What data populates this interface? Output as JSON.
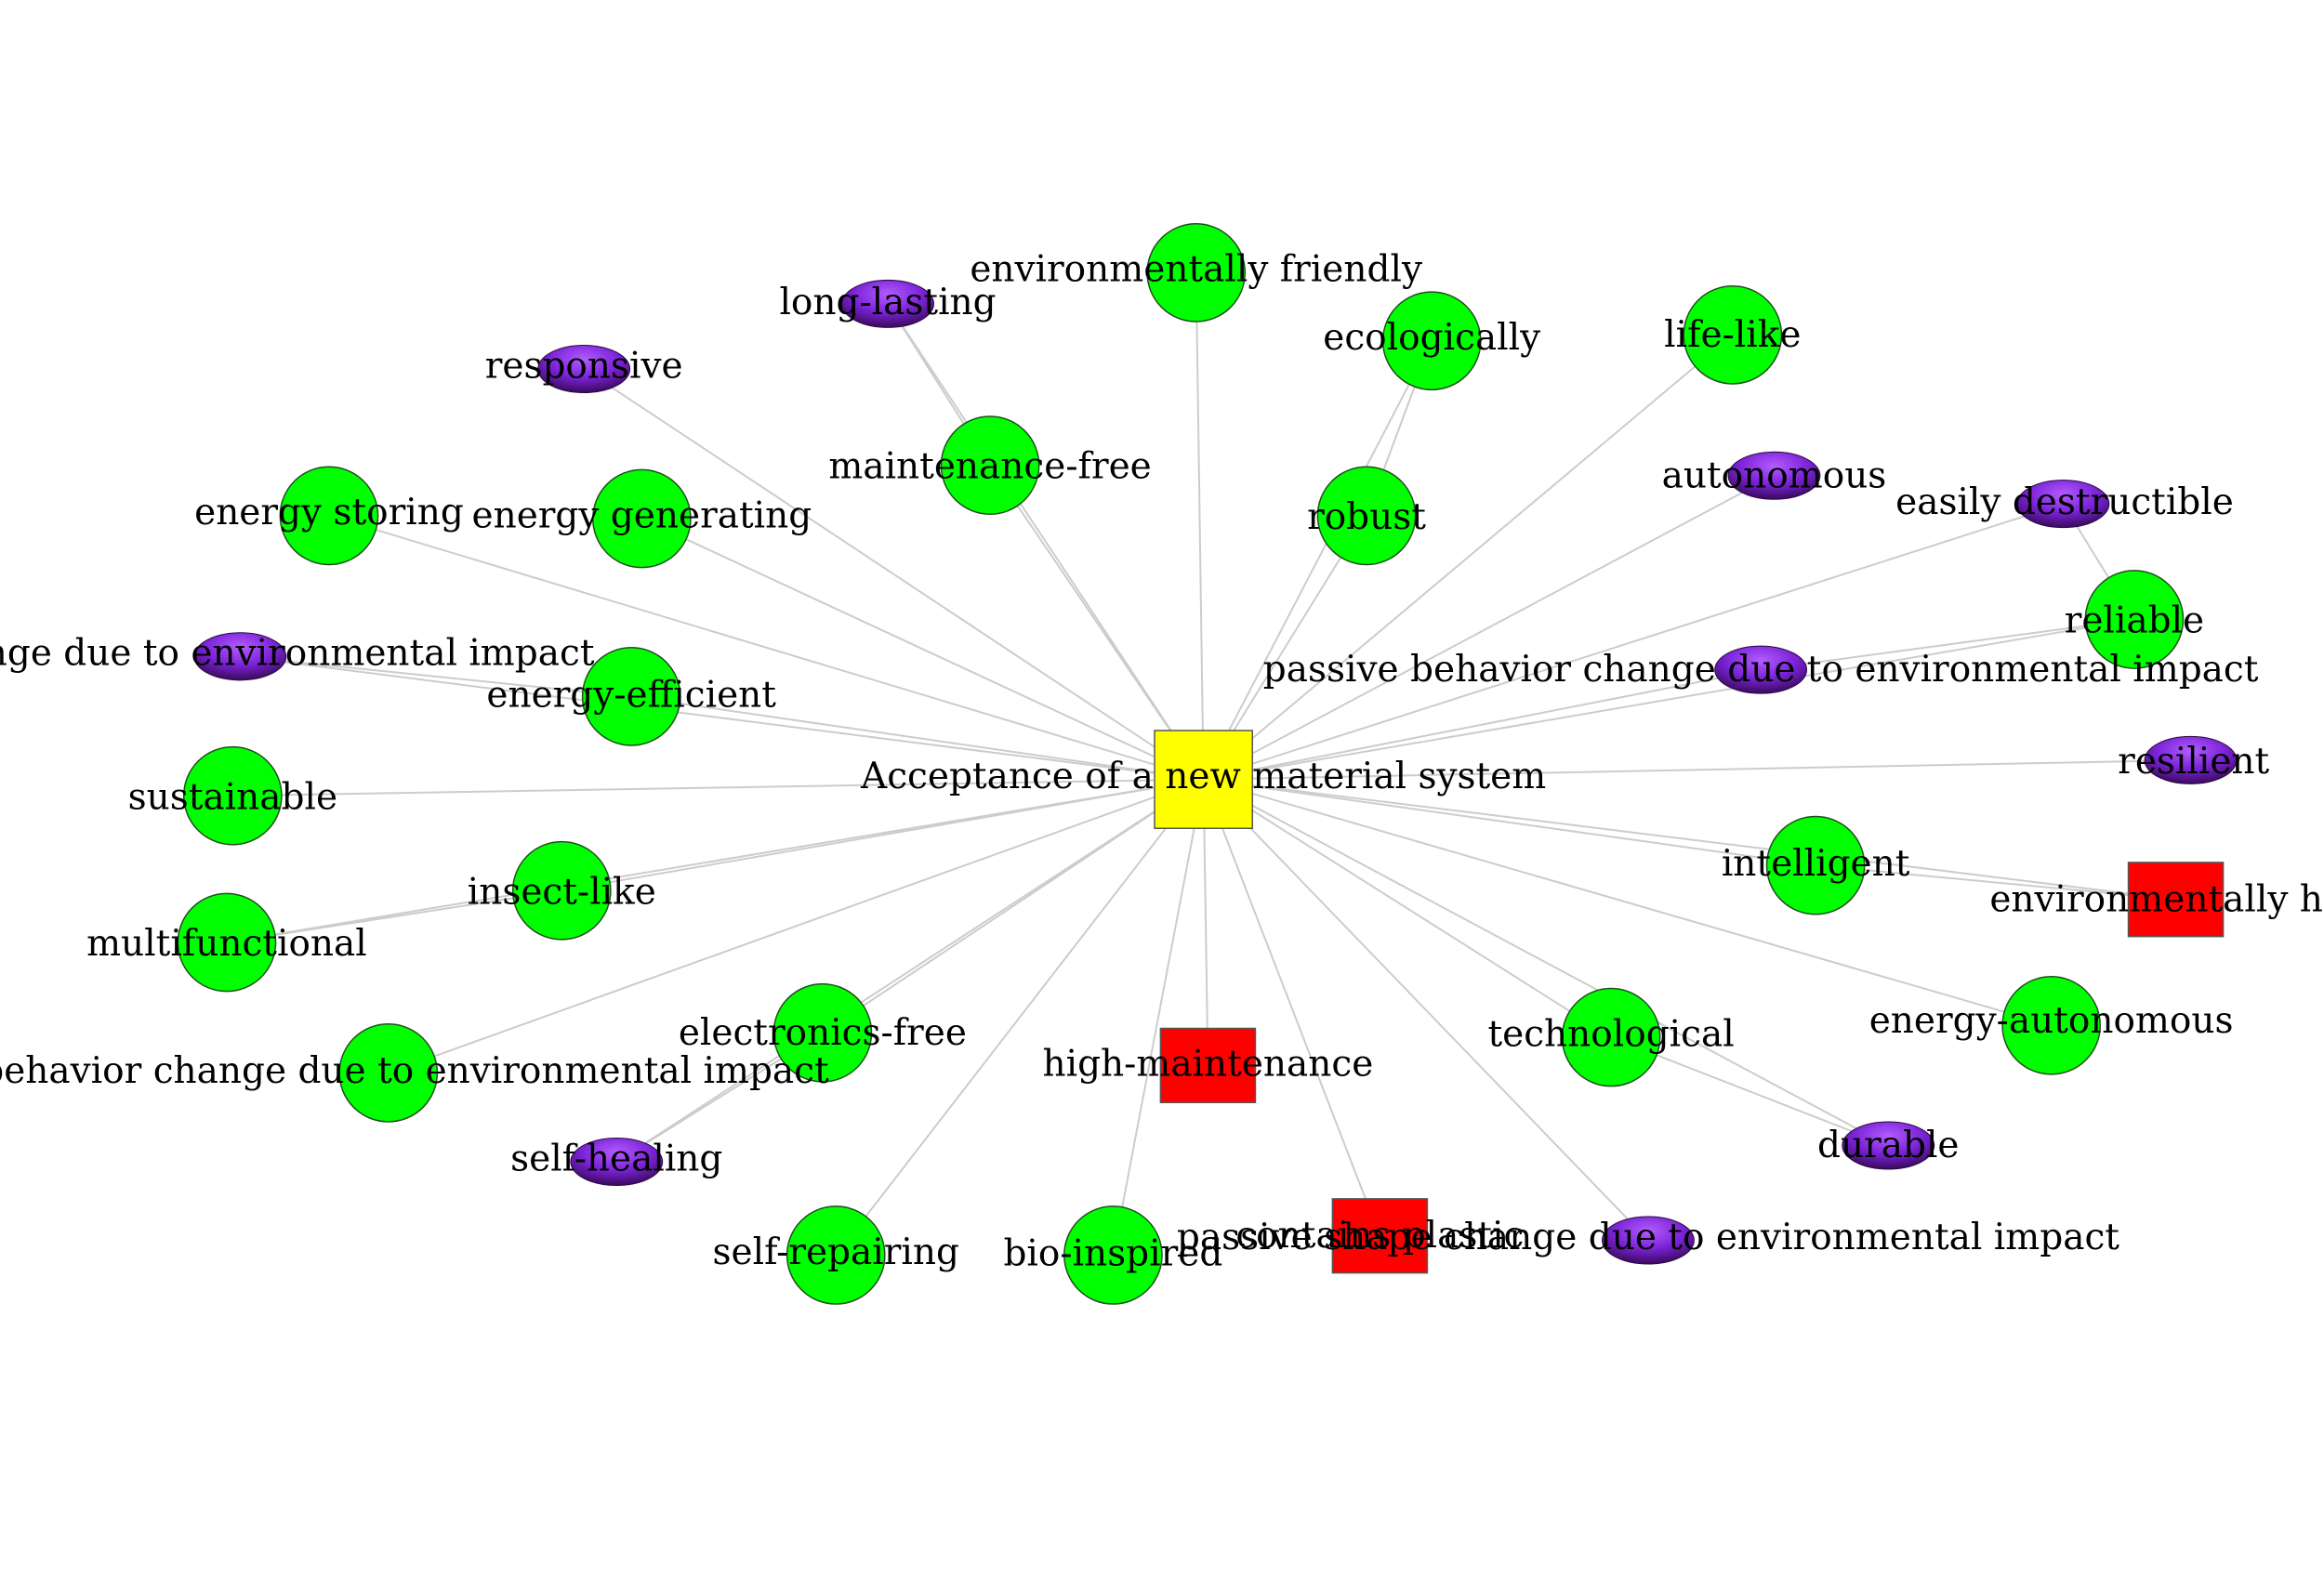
{
  "colors": {
    "center": "#ffff00",
    "positive": "#00ff00",
    "negative": "#ff0000",
    "neutral_light": "#9b30ff",
    "neutral_dark": "#3a0a5c",
    "edge": "#cccccc"
  },
  "center": {
    "label": "Acceptance of a new material system",
    "shape": "square",
    "color": "yellow"
  },
  "nodes": [
    {
      "id": "environmentally-friendly",
      "label": "environmentally friendly",
      "shape": "circle"
    },
    {
      "id": "long-lasting",
      "label": "long-lasting",
      "shape": "ellipse"
    },
    {
      "id": "responsive",
      "label": "responsive",
      "shape": "ellipse"
    },
    {
      "id": "ecologically",
      "label": "ecologically",
      "shape": "circle"
    },
    {
      "id": "life-like",
      "label": "life-like",
      "shape": "circle"
    },
    {
      "id": "maintenance-free",
      "label": "maintenance-free",
      "shape": "circle"
    },
    {
      "id": "robust",
      "label": "robust",
      "shape": "circle"
    },
    {
      "id": "autonomous",
      "label": "autonomous",
      "shape": "ellipse"
    },
    {
      "id": "easily-destructible",
      "label": "easily destructible",
      "shape": "ellipse"
    },
    {
      "id": "energy-storing",
      "label": "energy storing",
      "shape": "circle"
    },
    {
      "id": "energy-generating",
      "label": "energy generating",
      "shape": "circle"
    },
    {
      "id": "reliable",
      "label": "reliable",
      "shape": "circle"
    },
    {
      "id": "passive-behavior-change-right",
      "label": "passive behavior change due to environmental impact",
      "shape": "ellipse"
    },
    {
      "id": "change-due-left",
      "label": "e change due to environmental impact",
      "shape": "ellipse"
    },
    {
      "id": "energy-efficient",
      "label": "energy-efficient",
      "shape": "circle"
    },
    {
      "id": "sustainable",
      "label": "sustainable",
      "shape": "circle"
    },
    {
      "id": "resilient",
      "label": "resilient",
      "shape": "ellipse"
    },
    {
      "id": "intelligent",
      "label": "intelligent",
      "shape": "circle"
    },
    {
      "id": "insect-like",
      "label": "insect-like",
      "shape": "circle"
    },
    {
      "id": "environmentally-harmful",
      "label": "environmentally har",
      "shape": "square"
    },
    {
      "id": "multifunctional",
      "label": "multifunctional",
      "shape": "circle"
    },
    {
      "id": "electronics-free",
      "label": "electronics-free",
      "shape": "circle"
    },
    {
      "id": "energy-autonomous",
      "label": "energy-autonomous",
      "shape": "circle"
    },
    {
      "id": "technological",
      "label": "technological",
      "shape": "circle"
    },
    {
      "id": "high-maintenance",
      "label": "high-maintenance",
      "shape": "square"
    },
    {
      "id": "behavior-change-left",
      "label": "e behavior change due to environmental impact",
      "shape": "circle"
    },
    {
      "id": "self-healing",
      "label": "self-healing",
      "shape": "ellipse"
    },
    {
      "id": "durable",
      "label": "durable",
      "shape": "ellipse"
    },
    {
      "id": "self-repairing",
      "label": "self-repairing",
      "shape": "circle"
    },
    {
      "id": "bio-inspired",
      "label": "bio-inspired",
      "shape": "circle"
    },
    {
      "id": "contains-plastic",
      "label": "contains plastic",
      "shape": "square"
    },
    {
      "id": "passive-shape-change",
      "label": "passive shape change due to environmental impact",
      "shape": "ellipse"
    }
  ]
}
